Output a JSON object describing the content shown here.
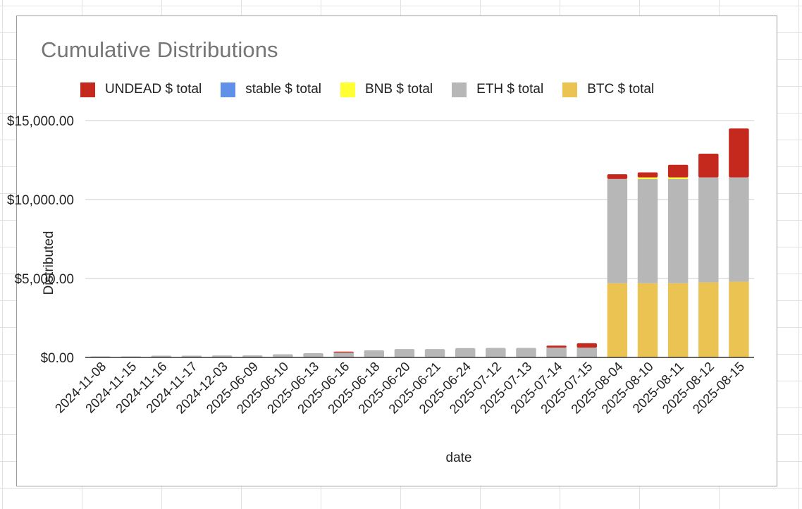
{
  "chart_data": {
    "type": "bar",
    "stacked": true,
    "title": "Cumulative Distributions",
    "xlabel": "date",
    "ylabel": "Distributed",
    "ylim": [
      0,
      15000
    ],
    "yticks": [
      0,
      5000,
      10000,
      15000
    ],
    "ytick_labels": [
      "$0.00",
      "$5,000.00",
      "$10,000.00",
      "$15,000.00"
    ],
    "grid": true,
    "legend_position": "top",
    "categories": [
      "2024-11-08",
      "2024-11-15",
      "2024-11-16",
      "2024-11-17",
      "2024-12-03",
      "2025-06-09",
      "2025-06-10",
      "2025-06-13",
      "2025-06-16",
      "2025-06-18",
      "2025-06-20",
      "2025-06-21",
      "2025-06-24",
      "2025-07-12",
      "2025-07-13",
      "2025-07-14",
      "2025-07-15",
      "2025-08-04",
      "2025-08-10",
      "2025-08-11",
      "2025-08-12",
      "2025-08-15"
    ],
    "series": [
      {
        "name": "BTC $ total",
        "color": "#eac353",
        "values": [
          0,
          0,
          0,
          0,
          0,
          0,
          0,
          0,
          0,
          0,
          0,
          0,
          0,
          0,
          0,
          0,
          0,
          4700,
          4700,
          4700,
          4750,
          4800
        ]
      },
      {
        "name": "ETH $ total",
        "color": "#b7b7b7",
        "values": [
          20,
          50,
          110,
          110,
          120,
          130,
          200,
          270,
          300,
          450,
          530,
          530,
          590,
          600,
          600,
          620,
          620,
          6600,
          6600,
          6600,
          6650,
          6600
        ]
      },
      {
        "name": "BNB $ total",
        "color": "#ffff33",
        "values": [
          0,
          0,
          0,
          0,
          0,
          0,
          0,
          0,
          0,
          0,
          0,
          0,
          0,
          0,
          0,
          0,
          0,
          0,
          100,
          100,
          0,
          0
        ]
      },
      {
        "name": "stable $ total",
        "color": "#6090e8",
        "values": [
          0,
          0,
          0,
          0,
          0,
          0,
          0,
          0,
          0,
          0,
          0,
          0,
          0,
          0,
          0,
          0,
          0,
          0,
          0,
          0,
          0,
          0
        ]
      },
      {
        "name": "UNDEAD $ total",
        "color": "#c5281c",
        "values": [
          0,
          0,
          0,
          0,
          0,
          0,
          0,
          0,
          60,
          0,
          0,
          0,
          0,
          0,
          0,
          130,
          280,
          300,
          320,
          800,
          1500,
          3100
        ]
      }
    ],
    "legend_order": [
      "UNDEAD $ total",
      "stable $ total",
      "BNB $ total",
      "ETH $ total",
      "BTC $ total"
    ]
  }
}
